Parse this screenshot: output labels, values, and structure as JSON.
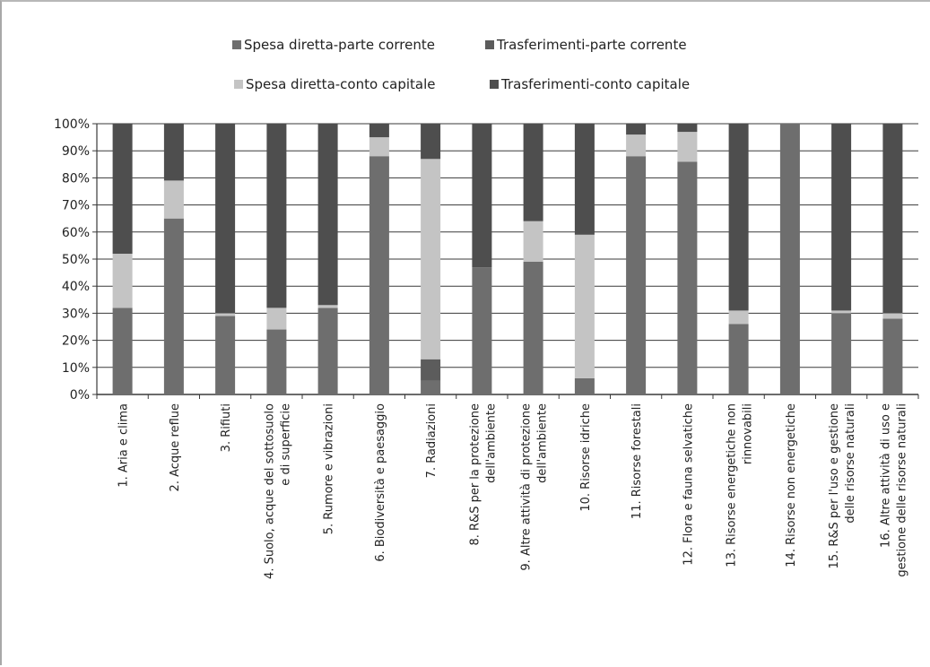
{
  "chart_data": {
    "type": "bar",
    "stacked": true,
    "orientation": "vertical",
    "title": "",
    "xlabel": "",
    "ylabel": "",
    "ylim": [
      0,
      100
    ],
    "y_ticks": [
      "0%",
      "10%",
      "20%",
      "30%",
      "40%",
      "50%",
      "60%",
      "70%",
      "80%",
      "90%",
      "100%"
    ],
    "grid": true,
    "legend_position": "top",
    "categories": [
      [
        "1. Aria e clima"
      ],
      [
        "2. Acque reflue"
      ],
      [
        "3. Rifiuti"
      ],
      [
        "4. Suolo, acque del sottosuolo",
        "e di superficie"
      ],
      [
        "5. Rumore e vibrazioni"
      ],
      [
        "6. Biodiversità e paesaggio"
      ],
      [
        "7. Radiazioni"
      ],
      [
        "8. R&S per la protezione",
        "dell'ambiente"
      ],
      [
        "9. Altre attività di protezione",
        "dell'ambiente"
      ],
      [
        "10. Risorse idriche"
      ],
      [
        "11. Risorse forestali"
      ],
      [
        "12. Flora e fauna selvatiche"
      ],
      [
        "13. Risorse energetiche non",
        "rinnovabili"
      ],
      [
        "14. Risorse non energetiche"
      ],
      [
        "15. R&S per l'uso e gestione",
        "delle risorse naturali"
      ],
      [
        "16. Altre attività di uso e",
        "gestione delle risorse naturali"
      ]
    ],
    "series": [
      {
        "name": "Spesa diretta-parte corrente",
        "color": "#6e6e6e",
        "values": [
          32,
          65,
          29,
          24,
          32,
          88,
          5,
          47,
          49,
          6,
          88,
          86,
          26,
          100,
          30,
          28
        ]
      },
      {
        "name": "Trasferimenti-parte corrente",
        "color": "#5c5c5c",
        "values": [
          0,
          0,
          0,
          0,
          0,
          0,
          8,
          0,
          0,
          0,
          0,
          0,
          0,
          0,
          0,
          0
        ]
      },
      {
        "name": "Spesa diretta-conto capitale",
        "color": "#c4c4c4",
        "values": [
          20,
          14,
          1,
          8,
          1,
          7,
          74,
          0,
          15,
          53,
          8,
          11,
          5,
          0,
          1,
          2
        ]
      },
      {
        "name": "Trasferimenti-conto capitale",
        "color": "#4e4e4e",
        "values": [
          48,
          21,
          70,
          68,
          67,
          5,
          13,
          53,
          36,
          41,
          4,
          3,
          69,
          0,
          69,
          70
        ]
      }
    ]
  }
}
